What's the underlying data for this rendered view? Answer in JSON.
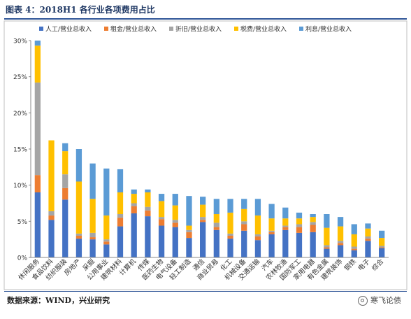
{
  "figure": {
    "title": "图表 4：2018H1 各行业各项费用占比",
    "source": "数据来源：WIND，兴业研究",
    "watermark": "寒飞论债",
    "watermark_icon": "wechat-logo-icon"
  },
  "chart_data": {
    "type": "bar",
    "stacked": true,
    "title": "",
    "xlabel": "",
    "ylabel": "",
    "ylim": [
      0,
      30
    ],
    "yticks": [
      "0%",
      "5%",
      "10%",
      "15%",
      "20%",
      "25%",
      "30%"
    ],
    "grid": false,
    "legend_position": "top",
    "categories": [
      "休闲服务",
      "食品饮料",
      "纺织服装",
      "房地产",
      "采掘",
      "公用事业",
      "建筑材料",
      "计算机",
      "传媒",
      "医药生物",
      "电气设备",
      "轻工制造",
      "通信",
      "商业贸易",
      "化工",
      "机械设备",
      "交通运输",
      "汽车",
      "农林牧渔",
      "国防军工",
      "家用电器",
      "有色金属",
      "建筑装饰",
      "钢铁",
      "电子",
      "综合"
    ],
    "series": [
      {
        "name": "人工/营业总收入",
        "color": "#4472c4",
        "values": [
          9.0,
          5.2,
          8.0,
          2.6,
          2.5,
          1.8,
          4.3,
          6.1,
          5.7,
          4.4,
          4.2,
          2.7,
          4.9,
          3.8,
          2.6,
          3.7,
          2.4,
          3.2,
          3.8,
          3.4,
          3.5,
          1.2,
          1.7,
          1.0,
          2.3,
          1.3
        ]
      },
      {
        "name": "租金/营业总收入",
        "color": "#ed7d31",
        "values": [
          2.4,
          0.6,
          1.6,
          0.4,
          0.3,
          0.4,
          1.2,
          1.0,
          0.8,
          0.9,
          0.6,
          0.8,
          0.3,
          0.4,
          0.4,
          0.9,
          0.5,
          0.3,
          0.4,
          0.8,
          1.0,
          0.2,
          0.3,
          0.2,
          0.3,
          0.1
        ]
      },
      {
        "name": "折旧/营业总收入",
        "color": "#a5a5a5",
        "values": [
          12.8,
          0.6,
          1.9,
          0.3,
          0.6,
          0.3,
          0.5,
          0.4,
          0.5,
          0.3,
          0.4,
          0.3,
          0.4,
          0.6,
          0.3,
          0.4,
          0.3,
          0.2,
          0.2,
          0.4,
          0.4,
          0.3,
          0.3,
          0.3,
          0.3,
          0.2
        ]
      },
      {
        "name": "税费/营业总收入",
        "color": "#ffc000",
        "values": [
          5.1,
          9.8,
          3.2,
          7.2,
          4.7,
          3.3,
          3.0,
          1.3,
          2.0,
          2.2,
          2.0,
          0.6,
          1.7,
          1.2,
          2.9,
          1.7,
          2.6,
          1.7,
          1.0,
          0.8,
          0.7,
          2.4,
          2.0,
          1.7,
          1.1,
          1.1
        ]
      },
      {
        "name": "利息/营业总收入",
        "color": "#5b9bd5",
        "values": [
          0.7,
          0.0,
          1.1,
          4.5,
          4.9,
          6.5,
          3.2,
          0.6,
          0.4,
          1.0,
          1.6,
          4.1,
          1.1,
          2.1,
          1.9,
          1.4,
          2.3,
          2.0,
          1.5,
          0.8,
          0.4,
          1.9,
          1.3,
          1.4,
          0.7,
          1.0
        ]
      }
    ]
  }
}
